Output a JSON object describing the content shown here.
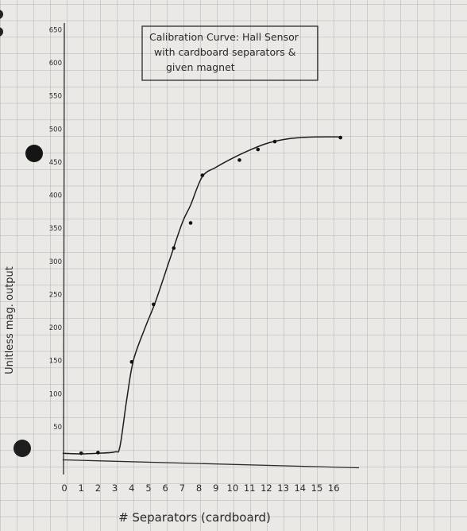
{
  "chart_data": {
    "type": "line",
    "title_lines": [
      "Calibration Curve: Hall Sensor",
      "with cardboard separators &",
      "given magnet"
    ],
    "xlabel": "# Separators (cardboard)",
    "ylabel": "Unitless mag. output",
    "x_ticks": [
      0,
      1,
      2,
      3,
      4,
      5,
      6,
      7,
      8,
      9,
      10,
      11,
      12,
      13,
      14,
      15,
      16
    ],
    "y_ticks": [
      50,
      100,
      150,
      200,
      250,
      300,
      350,
      400,
      450,
      500,
      550,
      600,
      650
    ],
    "xlim": [
      -0.1,
      17.5
    ],
    "ylim": [
      -22,
      660
    ],
    "grid": true,
    "points": [
      {
        "x": 1,
        "y": 10
      },
      {
        "x": 2,
        "y": 11
      },
      {
        "x": 4,
        "y": 148
      },
      {
        "x": 5.3,
        "y": 235
      },
      {
        "x": 6.5,
        "y": 320
      },
      {
        "x": 7.5,
        "y": 358
      },
      {
        "x": 8.2,
        "y": 430
      },
      {
        "x": 10.4,
        "y": 453
      },
      {
        "x": 11.5,
        "y": 469
      },
      {
        "x": 12.5,
        "y": 481
      },
      {
        "x": 16.4,
        "y": 487
      }
    ],
    "curve": [
      {
        "x": -0.1,
        "y": 10
      },
      {
        "x": 1,
        "y": 9
      },
      {
        "x": 2,
        "y": 10
      },
      {
        "x": 3,
        "y": 12
      },
      {
        "x": 3.3,
        "y": 20
      },
      {
        "x": 3.7,
        "y": 90
      },
      {
        "x": 4.1,
        "y": 150
      },
      {
        "x": 4.8,
        "y": 200
      },
      {
        "x": 5.4,
        "y": 238
      },
      {
        "x": 6.2,
        "y": 298
      },
      {
        "x": 7,
        "y": 358
      },
      {
        "x": 7.5,
        "y": 385
      },
      {
        "x": 8.2,
        "y": 428
      },
      {
        "x": 9,
        "y": 442
      },
      {
        "x": 10,
        "y": 456
      },
      {
        "x": 11,
        "y": 468
      },
      {
        "x": 12,
        "y": 478
      },
      {
        "x": 13,
        "y": 484
      },
      {
        "x": 14,
        "y": 487
      },
      {
        "x": 15,
        "y": 488
      },
      {
        "x": 16.5,
        "y": 488
      }
    ]
  }
}
